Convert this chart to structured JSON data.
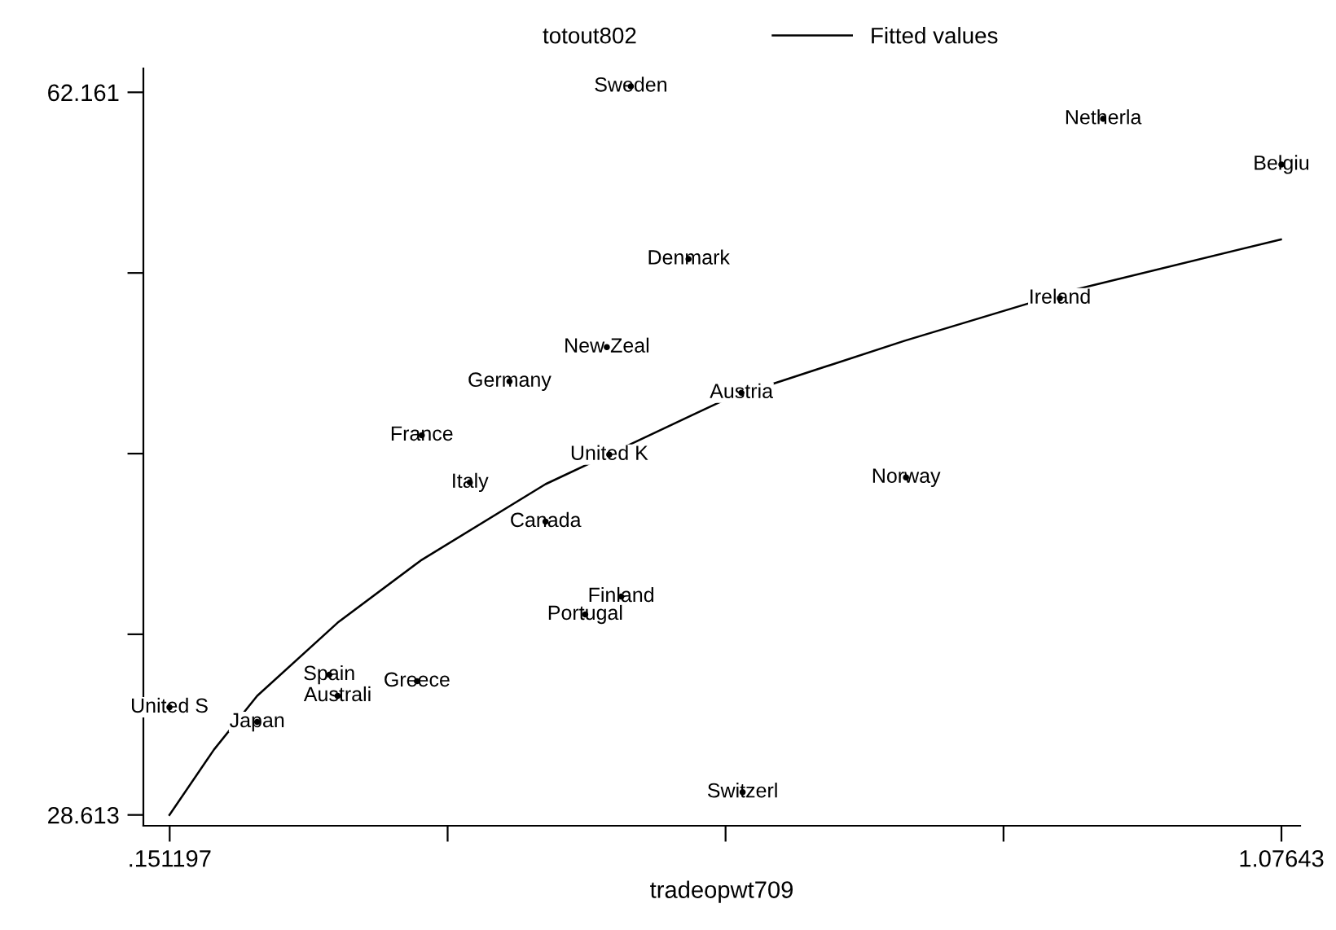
{
  "chart_data": {
    "type": "scatter",
    "xlabel": "tradeopwt709",
    "xlim": [
      0.1293,
      1.092
    ],
    "ylim": [
      28.11,
      63.27
    ],
    "xticks": [
      {
        "value": 0.151197,
        "label": ".151197"
      },
      {
        "value": 0.382505,
        "label": null
      },
      {
        "value": 0.613813,
        "label": null
      },
      {
        "value": 0.845122,
        "label": null
      },
      {
        "value": 1.07643,
        "label": "1.07643"
      }
    ],
    "yticks": [
      {
        "value": 28.613,
        "label": "28.613"
      },
      {
        "value": 37.0,
        "label": null
      },
      {
        "value": 45.387,
        "label": null
      },
      {
        "value": 53.774,
        "label": null
      },
      {
        "value": 62.161,
        "label": "62.161"
      }
    ],
    "grid": false,
    "legend": "top",
    "series": [
      {
        "name": "totout802",
        "marker": "none",
        "color": "#000000",
        "x": [
          0.535,
          0.928,
          1.0764,
          0.583,
          0.892,
          0.515,
          0.434,
          0.627,
          0.361,
          0.517,
          0.764,
          0.401,
          0.464,
          0.527,
          0.497,
          0.284,
          0.291,
          0.357,
          0.151,
          0.224,
          0.628
        ],
        "values": [
          62.44,
          60.93,
          58.81,
          54.42,
          52.6,
          50.33,
          48.74,
          48.21,
          46.24,
          45.34,
          44.28,
          44.05,
          42.23,
          38.75,
          37.92,
          35.12,
          34.14,
          34.82,
          33.61,
          32.93,
          29.67
        ],
        "value_labels": [
          "Sweden",
          "Netherla",
          "Belgiu",
          "Denmark",
          "Ireland",
          "New Zeal",
          "Germany",
          "Austria",
          "France",
          "United K",
          "Norway",
          "Italy",
          "Canada",
          "Finland",
          "Portugal",
          "Spain",
          "Australi",
          "Greece",
          "United S",
          "Japan",
          "Switzerl"
        ]
      },
      {
        "name": "Fitted values",
        "type": "line",
        "marker": "none",
        "line_style": "solid",
        "color": "#000000",
        "x": [
          0.151,
          0.188,
          0.224,
          0.291,
          0.36,
          0.464,
          0.614,
          0.763,
          0.903,
          1.076
        ],
        "values": [
          28.61,
          31.64,
          34.14,
          37.54,
          40.42,
          43.97,
          47.91,
          50.63,
          52.98,
          55.33
        ]
      }
    ]
  }
}
